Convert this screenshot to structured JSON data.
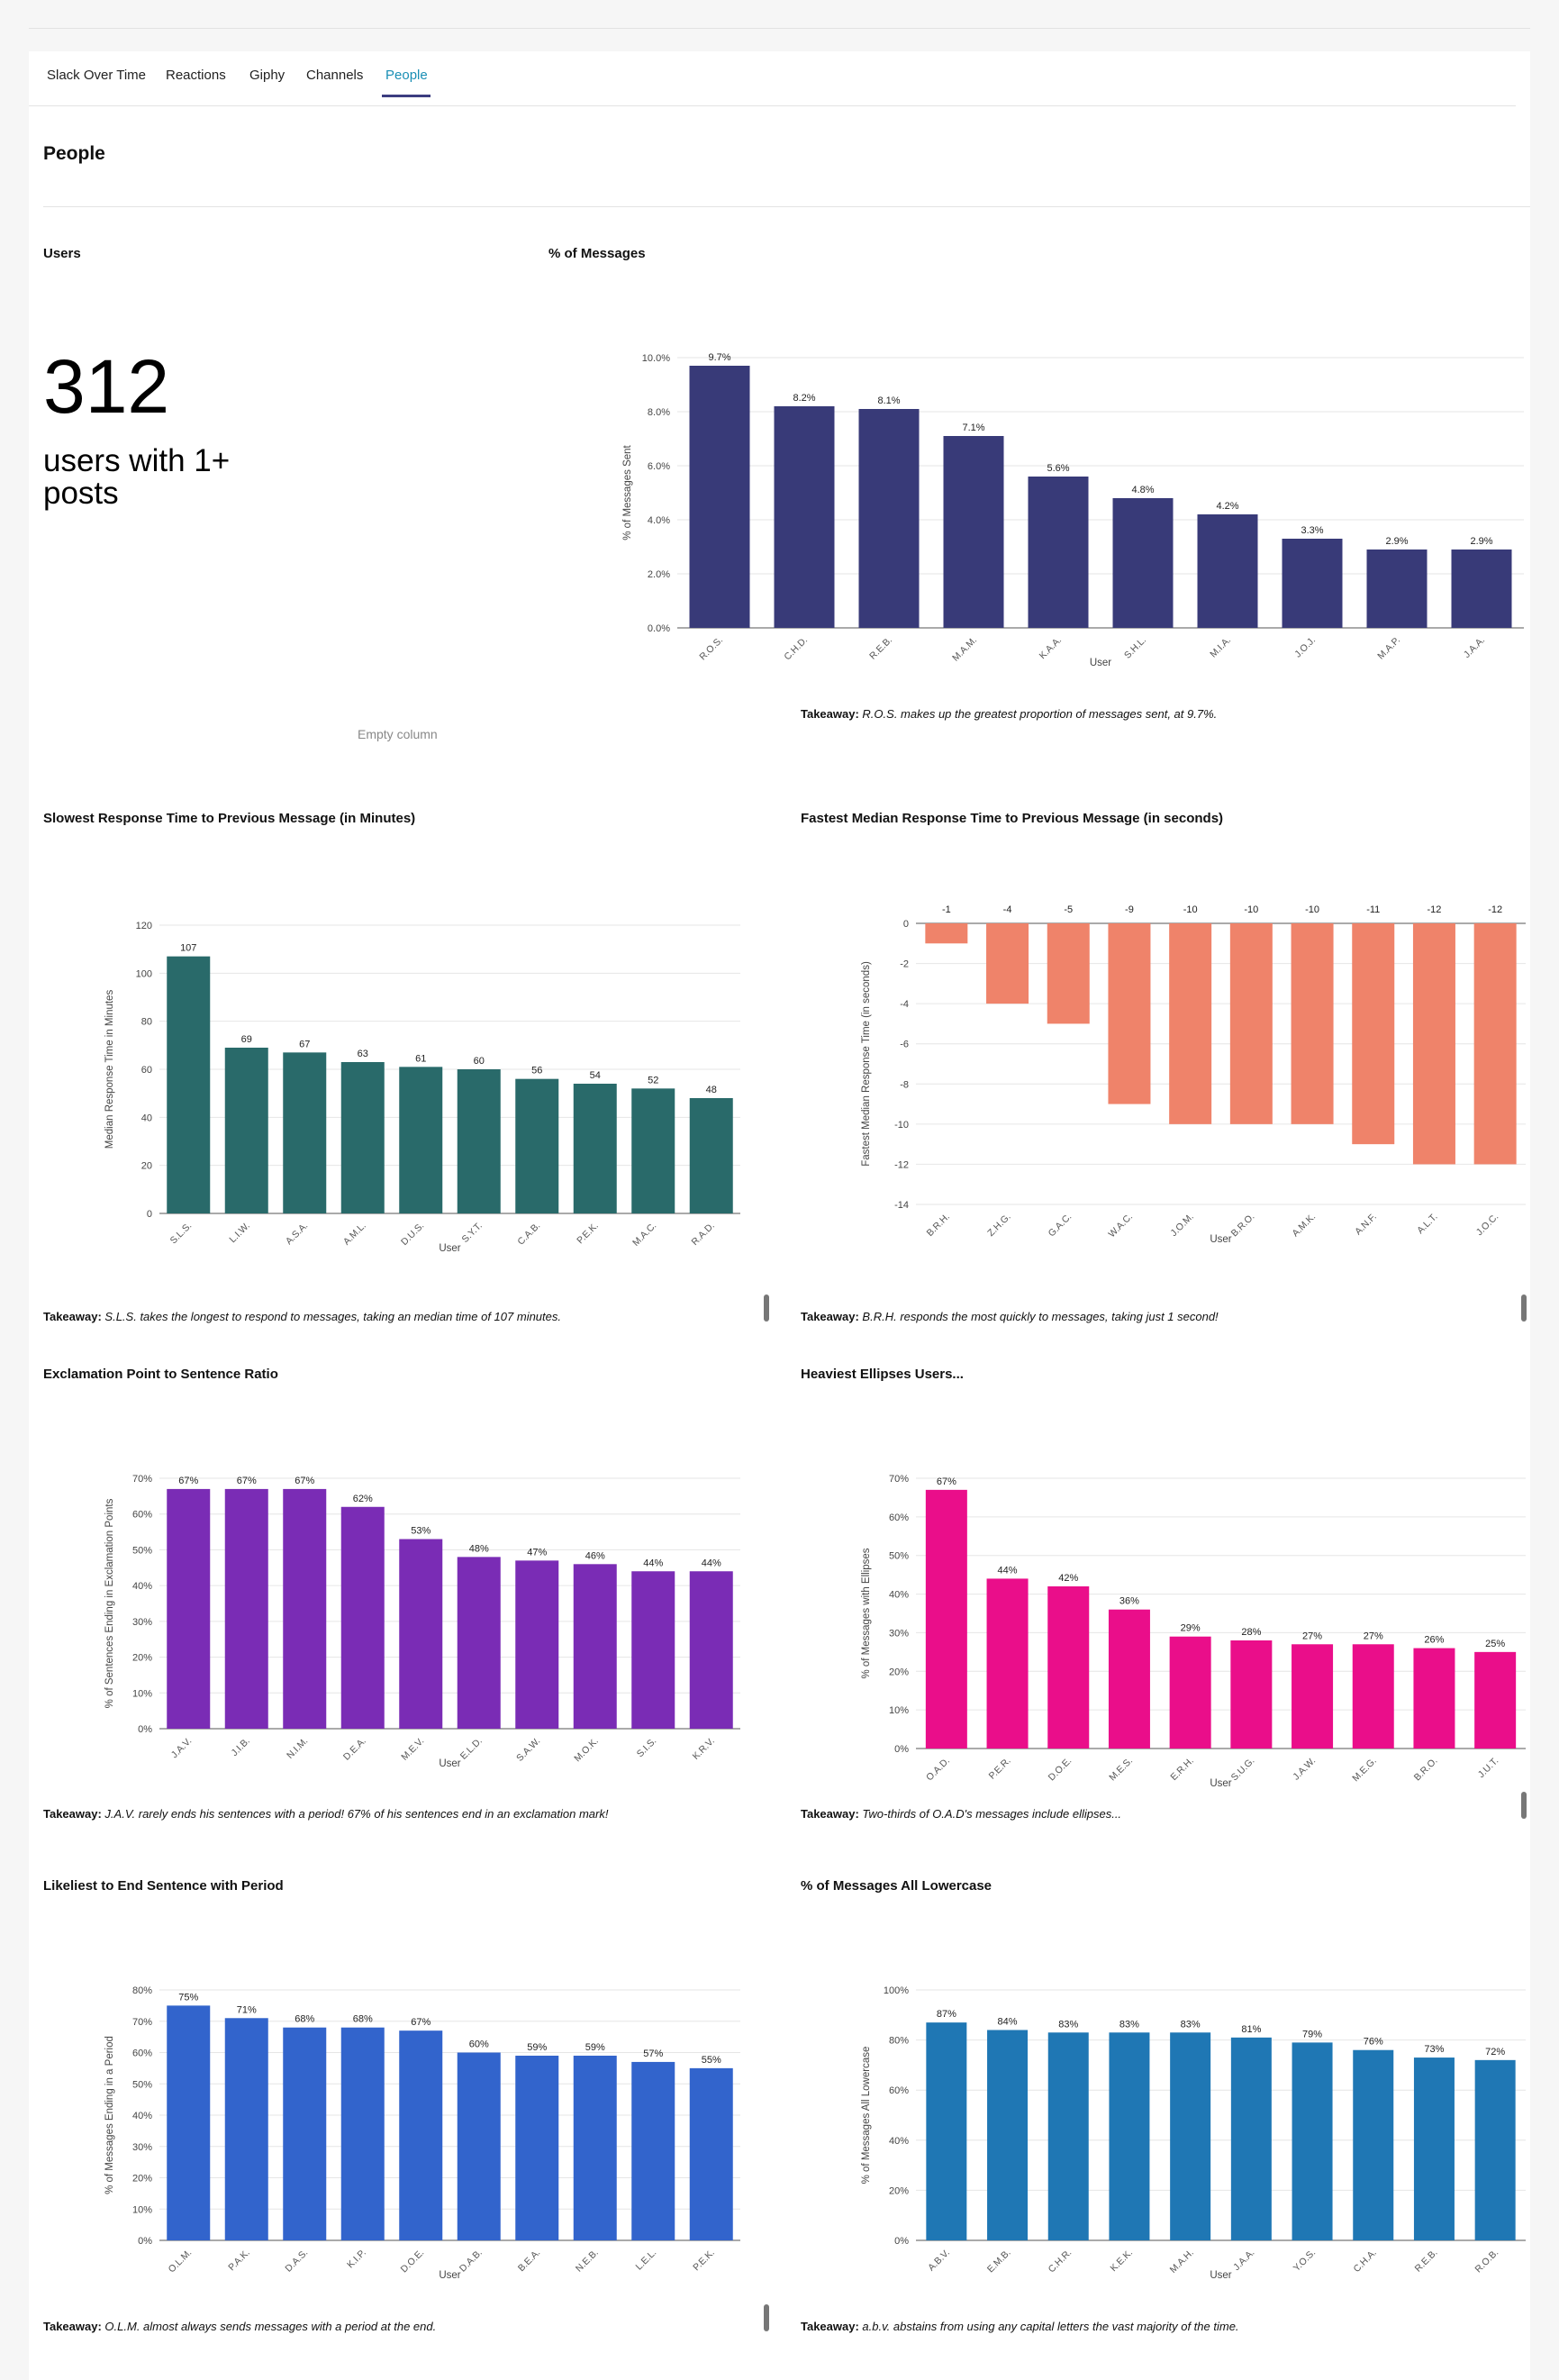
{
  "tabs": [
    "Slack Over Time",
    "Reactions",
    "Giphy",
    "Channels",
    "People"
  ],
  "active_tab": "People",
  "section_title": "People",
  "users_card": {
    "title": "Users",
    "count": "312",
    "subtitle": "users with 1+ posts",
    "empty_column": "Empty column"
  },
  "colors": {
    "navy": "#383a78",
    "teal": "#296a6a",
    "salmon": "#ef836a",
    "purple": "#7a2cb5",
    "magenta": "#ea0e8a",
    "blue": "#3264cc",
    "steel": "#1f77b4",
    "accent": "#1a8fb5"
  },
  "charts": [
    {
      "title": "% of Messages",
      "takeaway_lead": "Takeaway:",
      "takeaway_text": "R.O.S. makes up the greatest proportion of messages sent, at 9.7%.",
      "chart_data": {
        "type": "bar",
        "categories": [
          "R.O.S.",
          "C.H.D.",
          "R.E.B.",
          "M.A.M.",
          "K.A.A.",
          "S.H.L.",
          "M.I.A.",
          "J.O.J.",
          "M.A.P.",
          "J.A.A."
        ],
        "values": [
          9.7,
          8.2,
          8.1,
          7.1,
          5.6,
          4.8,
          4.2,
          3.3,
          2.9,
          2.9
        ],
        "data_labels": [
          "9.7%",
          "8.2%",
          "8.1%",
          "7.1%",
          "5.6%",
          "4.8%",
          "4.2%",
          "3.3%",
          "2.9%",
          "2.9%"
        ],
        "xlabel": "User",
        "ylabel": "% of Messages Sent",
        "ylim": [
          0,
          10
        ],
        "yticks": [
          0,
          2,
          4,
          6,
          8,
          10
        ],
        "ytick_labels": [
          "0.0%",
          "2.0%",
          "4.0%",
          "6.0%",
          "8.0%",
          "10.0%"
        ],
        "color": "#383a78",
        "grid": true
      }
    },
    {
      "title": "Slowest Response Time to Previous Message (in Minutes)",
      "takeaway_lead": "Takeaway:",
      "takeaway_text": "S.L.S. takes the longest to respond to messages, taking an median time of 107 minutes.",
      "chart_data": {
        "type": "bar",
        "categories": [
          "S.L.S.",
          "L.I.W.",
          "A.S.A.",
          "A.M.L.",
          "D.U.S.",
          "S.Y.T.",
          "C.A.B.",
          "P.E.K.",
          "M.A.C.",
          "R.A.D."
        ],
        "values": [
          107,
          69,
          67,
          63,
          61,
          60,
          56,
          54,
          52,
          48
        ],
        "data_labels": [
          "107",
          "69",
          "67",
          "63",
          "61",
          "60",
          "56",
          "54",
          "52",
          "48"
        ],
        "xlabel": "User",
        "ylabel": "Median Response Time in Minutes",
        "ylim": [
          0,
          120
        ],
        "yticks": [
          0,
          20,
          40,
          60,
          80,
          100,
          120
        ],
        "ytick_labels": [
          "0",
          "20",
          "40",
          "60",
          "80",
          "100",
          "120"
        ],
        "color": "#296a6a",
        "grid": true
      }
    },
    {
      "title": "Fastest Median Response Time to Previous Message (in seconds)",
      "takeaway_lead": "Takeaway:",
      "takeaway_text": "B.R.H. responds the most quickly to messages, taking just 1 second!",
      "chart_data": {
        "type": "bar",
        "categories": [
          "B.R.H.",
          "Z.H.G.",
          "G.A.C.",
          "W.A.C.",
          "J.O.M.",
          "B.R.O.",
          "A.M.K.",
          "A.N.F.",
          "A.L.T.",
          "J.O.C."
        ],
        "values": [
          -1,
          -4,
          -5,
          -9,
          -10,
          -10,
          -10,
          -11,
          -12,
          -12
        ],
        "data_labels": [
          "-1",
          "-4",
          "-5",
          "-9",
          "-10",
          "-10",
          "-10",
          "-11",
          "-12",
          "-12"
        ],
        "xlabel": "User",
        "ylabel": "Fastest Median Response Time (in seconds)",
        "ylim": [
          -14,
          0
        ],
        "yticks": [
          0,
          -2,
          -4,
          -6,
          -8,
          -10,
          -12,
          -14
        ],
        "ytick_labels": [
          "0",
          "-2",
          "-4",
          "-6",
          "-8",
          "-10",
          "-12",
          "-14"
        ],
        "color": "#ef836a",
        "grid": true
      }
    },
    {
      "title": "Exclamation Point to Sentence Ratio",
      "takeaway_lead": "Takeaway:",
      "takeaway_text": "J.A.V. rarely ends his sentences with a period! 67% of his sentences end in an exclamation mark!",
      "chart_data": {
        "type": "bar",
        "categories": [
          "J.A.V.",
          "J.I.B.",
          "N.I.M.",
          "D.E.A.",
          "M.E.V.",
          "E.L.D.",
          "S.A.W.",
          "M.O.K.",
          "S.I.S.",
          "K.R.V."
        ],
        "values": [
          67,
          67,
          67,
          62,
          53,
          48,
          47,
          46,
          44,
          44
        ],
        "data_labels": [
          "67%",
          "67%",
          "67%",
          "62%",
          "53%",
          "48%",
          "47%",
          "46%",
          "44%",
          "44%"
        ],
        "xlabel": "User",
        "ylabel": "% of Sentences Ending in Exclamation Points",
        "ylim": [
          0,
          70
        ],
        "yticks": [
          0,
          10,
          20,
          30,
          40,
          50,
          60,
          70
        ],
        "ytick_labels": [
          "0%",
          "10%",
          "20%",
          "30%",
          "40%",
          "50%",
          "60%",
          "70%"
        ],
        "color": "#7a2cb5",
        "grid": true
      }
    },
    {
      "title": "Heaviest Ellipses Users...",
      "takeaway_lead": "Takeaway:",
      "takeaway_text": "Two-thirds of O.A.D's messages include ellipses...",
      "chart_data": {
        "type": "bar",
        "categories": [
          "O.A.D.",
          "P.E.R.",
          "D.O.E.",
          "M.E.S.",
          "E.R.H.",
          "S.U.G.",
          "J.A.W.",
          "M.E.G.",
          "B.R.O.",
          "J.U.T."
        ],
        "values": [
          67,
          44,
          42,
          36,
          29,
          28,
          27,
          27,
          26,
          25
        ],
        "data_labels": [
          "67%",
          "44%",
          "42%",
          "36%",
          "29%",
          "28%",
          "27%",
          "27%",
          "26%",
          "25%"
        ],
        "xlabel": "User",
        "ylabel": "% of Messages with Ellipses",
        "ylim": [
          0,
          70
        ],
        "yticks": [
          0,
          10,
          20,
          30,
          40,
          50,
          60,
          70
        ],
        "ytick_labels": [
          "0%",
          "10%",
          "20%",
          "30%",
          "40%",
          "50%",
          "60%",
          "70%"
        ],
        "color": "#ea0e8a",
        "grid": true
      }
    },
    {
      "title": "Likeliest to End Sentence with Period",
      "takeaway_lead": "Takeaway:",
      "takeaway_text": "O.L.M. almost always sends messages with a period at the end.",
      "chart_data": {
        "type": "bar",
        "categories": [
          "O.L.M.",
          "P.A.K.",
          "D.A.S.",
          "K.I.P.",
          "D.O.E.",
          "D.A.B.",
          "B.E.A.",
          "N.E.B.",
          "L.E.L.",
          "P.E.K."
        ],
        "values": [
          75,
          71,
          68,
          68,
          67,
          60,
          59,
          59,
          57,
          55
        ],
        "data_labels": [
          "75%",
          "71%",
          "68%",
          "68%",
          "67%",
          "60%",
          "59%",
          "59%",
          "57%",
          "55%"
        ],
        "xlabel": "User",
        "ylabel": "% of Messages Ending in a Period",
        "ylim": [
          0,
          80
        ],
        "yticks": [
          0,
          10,
          20,
          30,
          40,
          50,
          60,
          70,
          80
        ],
        "ytick_labels": [
          "0%",
          "10%",
          "20%",
          "30%",
          "40%",
          "50%",
          "60%",
          "70%",
          "80%"
        ],
        "color": "#3264cc",
        "grid": true
      }
    },
    {
      "title": "% of Messages All Lowercase",
      "takeaway_lead": "Takeaway:",
      "takeaway_text": "a.b.v. abstains from using any capital letters the vast majority of the time.",
      "chart_data": {
        "type": "bar",
        "categories": [
          "A.B.V.",
          "E.M.B.",
          "C.H.R.",
          "K.E.K.",
          "M.A.H.",
          "J.A.A.",
          "Y.O.S.",
          "C.H.A.",
          "R.E.B.",
          "R.O.B."
        ],
        "values": [
          87,
          84,
          83,
          83,
          83,
          81,
          79,
          76,
          73,
          72
        ],
        "data_labels": [
          "87%",
          "84%",
          "83%",
          "83%",
          "83%",
          "81%",
          "79%",
          "76%",
          "73%",
          "72%"
        ],
        "xlabel": "User",
        "ylabel": "% of Messages All Lowercase",
        "ylim": [
          0,
          100
        ],
        "yticks": [
          0,
          20,
          40,
          60,
          80,
          100
        ],
        "ytick_labels": [
          "0%",
          "20%",
          "40%",
          "60%",
          "80%",
          "100%"
        ],
        "color": "#1f77b4",
        "grid": true
      }
    }
  ]
}
